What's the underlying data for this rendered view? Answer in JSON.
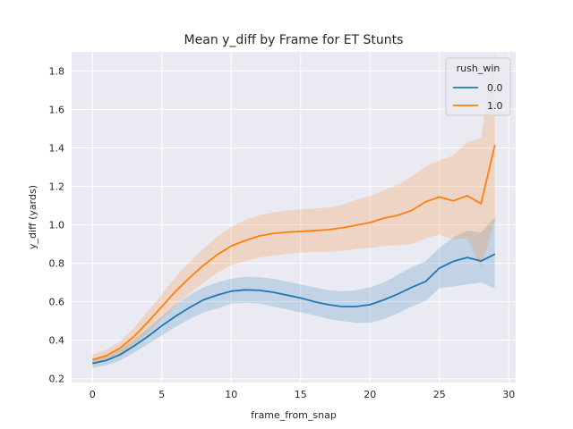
{
  "chart_data": {
    "type": "line",
    "title": "Mean y_diff by Frame for ET Stunts",
    "xlabel": "frame_from_snap",
    "ylabel": "y_diff (yards)",
    "xlim": [
      -1.5,
      30.5
    ],
    "ylim": [
      0.18,
      1.9
    ],
    "xticks": [
      0,
      5,
      10,
      15,
      20,
      25,
      30
    ],
    "xtick_labels": [
      "0",
      "5",
      "10",
      "15",
      "20",
      "25",
      "30"
    ],
    "yticks": [
      0.2,
      0.4,
      0.6,
      0.8,
      1.0,
      1.2,
      1.4,
      1.6,
      1.8
    ],
    "ytick_labels": [
      "0.2",
      "0.4",
      "0.6",
      "0.8",
      "1.0",
      "1.2",
      "1.4",
      "1.6",
      "1.8"
    ],
    "grid": true,
    "legend": {
      "title": "rush_win",
      "placement": "top-right"
    },
    "x": [
      0,
      1,
      2,
      3,
      4,
      5,
      6,
      7,
      8,
      9,
      10,
      11,
      12,
      13,
      14,
      15,
      16,
      17,
      18,
      19,
      20,
      21,
      22,
      23,
      24,
      25,
      26,
      27,
      28,
      29
    ],
    "series": [
      {
        "name": "0.0",
        "color": "#1f77b4",
        "values": [
          0.28,
          0.295,
          0.325,
          0.37,
          0.42,
          0.475,
          0.525,
          0.57,
          0.61,
          0.635,
          0.655,
          0.662,
          0.66,
          0.65,
          0.635,
          0.62,
          0.6,
          0.585,
          0.575,
          0.575,
          0.585,
          0.61,
          0.64,
          0.675,
          0.705,
          0.775,
          0.81,
          0.83,
          0.812,
          0.848
        ],
        "lower": [
          0.255,
          0.27,
          0.295,
          0.335,
          0.38,
          0.425,
          0.47,
          0.51,
          0.545,
          0.565,
          0.59,
          0.595,
          0.59,
          0.575,
          0.56,
          0.545,
          0.53,
          0.51,
          0.5,
          0.49,
          0.49,
          0.51,
          0.54,
          0.575,
          0.605,
          0.67,
          0.68,
          0.69,
          0.7,
          0.67
        ],
        "upper": [
          0.3,
          0.32,
          0.355,
          0.405,
          0.46,
          0.525,
          0.585,
          0.635,
          0.675,
          0.7,
          0.72,
          0.73,
          0.728,
          0.72,
          0.705,
          0.69,
          0.675,
          0.66,
          0.655,
          0.66,
          0.675,
          0.7,
          0.74,
          0.78,
          0.81,
          0.88,
          0.935,
          0.97,
          0.96,
          1.04
        ]
      },
      {
        "name": "1.0",
        "color": "#ff7f0e",
        "values": [
          0.298,
          0.32,
          0.36,
          0.42,
          0.495,
          0.575,
          0.655,
          0.725,
          0.79,
          0.845,
          0.89,
          0.918,
          0.942,
          0.955,
          0.962,
          0.966,
          0.97,
          0.975,
          0.985,
          0.998,
          1.012,
          1.035,
          1.05,
          1.075,
          1.12,
          1.145,
          1.125,
          1.152,
          1.11,
          1.415
        ],
        "lower": [
          0.27,
          0.29,
          0.325,
          0.375,
          0.44,
          0.51,
          0.58,
          0.645,
          0.7,
          0.75,
          0.79,
          0.81,
          0.83,
          0.84,
          0.85,
          0.855,
          0.86,
          0.86,
          0.865,
          0.875,
          0.88,
          0.89,
          0.895,
          0.9,
          0.93,
          0.95,
          0.925,
          0.93,
          0.78,
          1.02
        ],
        "upper": [
          0.325,
          0.35,
          0.395,
          0.465,
          0.55,
          0.64,
          0.73,
          0.805,
          0.875,
          0.94,
          0.99,
          1.025,
          1.05,
          1.065,
          1.075,
          1.08,
          1.085,
          1.09,
          1.105,
          1.13,
          1.15,
          1.18,
          1.21,
          1.25,
          1.305,
          1.335,
          1.36,
          1.43,
          1.45,
          1.9
        ]
      }
    ]
  }
}
